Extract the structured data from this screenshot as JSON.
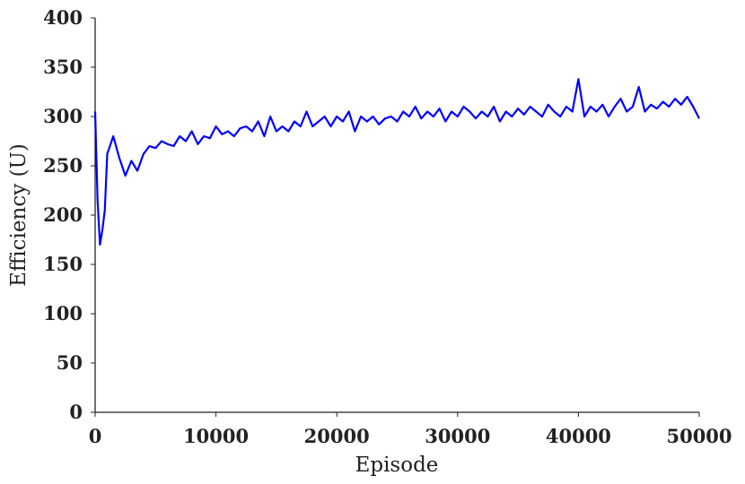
{
  "chart_data": {
    "type": "line",
    "xlabel": "Episode",
    "ylabel": "Efficiency (U)",
    "x": [
      0,
      200,
      400,
      600,
      800,
      1000,
      1500,
      2000,
      2500,
      3000,
      3500,
      4000,
      4500,
      5000,
      5500,
      6000,
      6500,
      7000,
      7500,
      8000,
      8500,
      9000,
      9500,
      10000,
      10500,
      11000,
      11500,
      12000,
      12500,
      13000,
      13500,
      14000,
      14500,
      15000,
      15500,
      16000,
      16500,
      17000,
      17500,
      18000,
      18500,
      19000,
      19500,
      20000,
      20500,
      21000,
      21500,
      22000,
      22500,
      23000,
      23500,
      24000,
      24500,
      25000,
      25500,
      26000,
      26500,
      27000,
      27500,
      28000,
      28500,
      29000,
      29500,
      30000,
      30500,
      31000,
      31500,
      32000,
      32500,
      33000,
      33500,
      34000,
      34500,
      35000,
      35500,
      36000,
      36500,
      37000,
      37500,
      38000,
      38500,
      39000,
      39500,
      40000,
      40500,
      41000,
      41500,
      42000,
      42500,
      43000,
      43500,
      44000,
      44500,
      45000,
      45500,
      46000,
      46500,
      47000,
      47500,
      48000,
      48500,
      49000,
      49500,
      50000
    ],
    "series": [
      {
        "name": "Efficiency",
        "color": "#0000ff",
        "values": [
          305,
          215,
          170,
          185,
          205,
          262,
          280,
          258,
          240,
          255,
          245,
          262,
          270,
          268,
          275,
          272,
          270,
          280,
          275,
          285,
          272,
          280,
          278,
          290,
          282,
          285,
          280,
          288,
          290,
          285,
          295,
          280,
          300,
          285,
          290,
          285,
          295,
          290,
          305,
          290,
          295,
          300,
          290,
          300,
          295,
          305,
          285,
          300,
          295,
          300,
          292,
          298,
          300,
          295,
          305,
          300,
          310,
          298,
          305,
          300,
          308,
          295,
          305,
          300,
          310,
          305,
          298,
          305,
          300,
          310,
          295,
          305,
          300,
          308,
          302,
          310,
          305,
          300,
          312,
          305,
          300,
          310,
          305,
          338,
          300,
          310,
          305,
          312,
          300,
          310,
          318,
          305,
          310,
          330,
          305,
          312,
          308,
          315,
          310,
          318,
          312,
          320,
          310,
          298
        ]
      }
    ],
    "xlim": [
      0,
      50000
    ],
    "ylim": [
      0,
      400
    ],
    "xticks": [
      0,
      10000,
      20000,
      30000,
      40000,
      50000
    ],
    "yticks": [
      0,
      50,
      100,
      150,
      200,
      250,
      300,
      350,
      400
    ]
  }
}
